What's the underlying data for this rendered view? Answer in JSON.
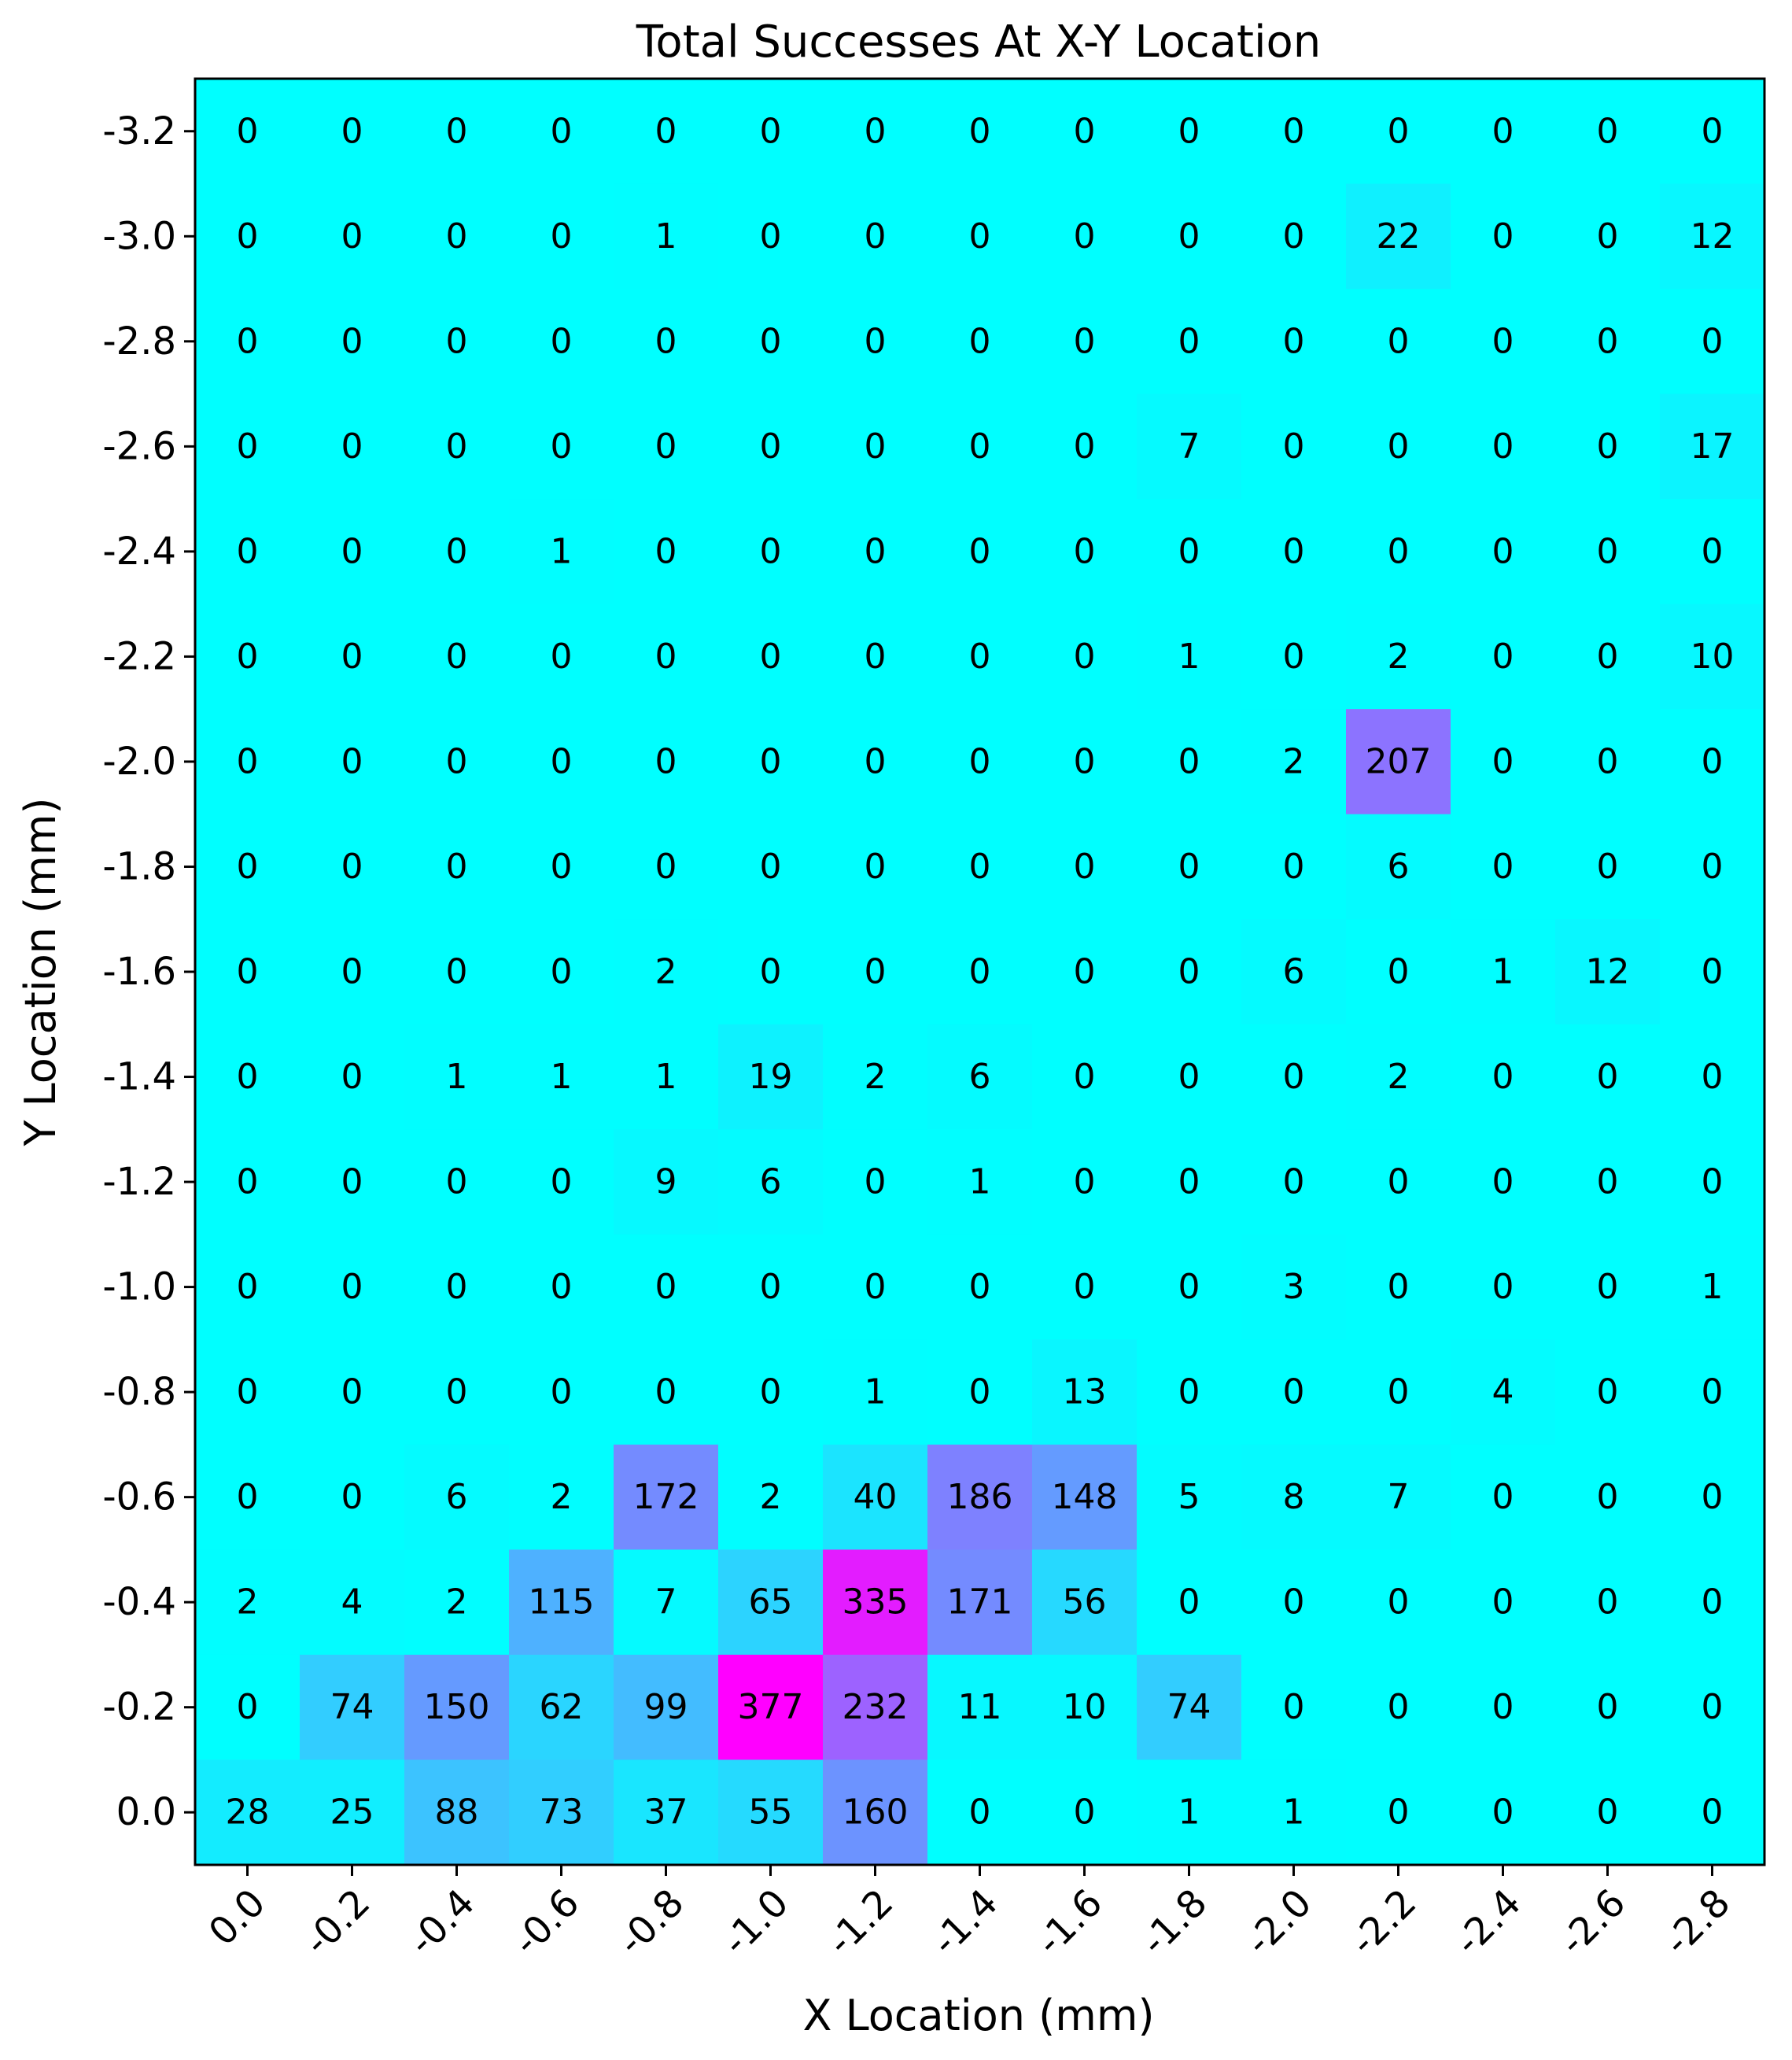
{
  "chart_data": {
    "type": "heatmap",
    "title": "Total Successes At X-Y Location",
    "xlabel": "X Location (mm)",
    "ylabel": "Y Location (mm)",
    "x_ticks": [
      "0.0",
      "-0.2",
      "-0.4",
      "-0.6",
      "-0.8",
      "-1.0",
      "-1.2",
      "-1.4",
      "-1.6",
      "-1.8",
      "-2.0",
      "-2.2",
      "-2.4",
      "-2.6",
      "-2.8"
    ],
    "y_ticks": [
      "-3.2",
      "-3.0",
      "-2.8",
      "-2.6",
      "-2.4",
      "-2.2",
      "-2.0",
      "-1.8",
      "-1.6",
      "-1.4",
      "-1.2",
      "-1.0",
      "-0.8",
      "-0.6",
      "-0.4",
      "-0.2",
      "0.0"
    ],
    "colormap": "cool",
    "vmin": 0,
    "vmax": 377,
    "values": [
      [
        0,
        0,
        0,
        0,
        0,
        0,
        0,
        0,
        0,
        0,
        0,
        0,
        0,
        0,
        0
      ],
      [
        0,
        0,
        0,
        0,
        1,
        0,
        0,
        0,
        0,
        0,
        0,
        22,
        0,
        0,
        12
      ],
      [
        0,
        0,
        0,
        0,
        0,
        0,
        0,
        0,
        0,
        0,
        0,
        0,
        0,
        0,
        0
      ],
      [
        0,
        0,
        0,
        0,
        0,
        0,
        0,
        0,
        0,
        7,
        0,
        0,
        0,
        0,
        17
      ],
      [
        0,
        0,
        0,
        1,
        0,
        0,
        0,
        0,
        0,
        0,
        0,
        0,
        0,
        0,
        0
      ],
      [
        0,
        0,
        0,
        0,
        0,
        0,
        0,
        0,
        0,
        1,
        0,
        2,
        0,
        0,
        10
      ],
      [
        0,
        0,
        0,
        0,
        0,
        0,
        0,
        0,
        0,
        0,
        2,
        207,
        0,
        0,
        0
      ],
      [
        0,
        0,
        0,
        0,
        0,
        0,
        0,
        0,
        0,
        0,
        0,
        6,
        0,
        0,
        0
      ],
      [
        0,
        0,
        0,
        0,
        2,
        0,
        0,
        0,
        0,
        0,
        6,
        0,
        1,
        12,
        0
      ],
      [
        0,
        0,
        1,
        1,
        1,
        19,
        2,
        6,
        0,
        0,
        0,
        2,
        0,
        0,
        0
      ],
      [
        0,
        0,
        0,
        0,
        9,
        6,
        0,
        1,
        0,
        0,
        0,
        0,
        0,
        0,
        0
      ],
      [
        0,
        0,
        0,
        0,
        0,
        0,
        0,
        0,
        0,
        0,
        3,
        0,
        0,
        0,
        1
      ],
      [
        0,
        0,
        0,
        0,
        0,
        0,
        1,
        0,
        13,
        0,
        0,
        0,
        4,
        0,
        0
      ],
      [
        0,
        0,
        6,
        2,
        172,
        2,
        40,
        186,
        148,
        5,
        8,
        7,
        0,
        0,
        0
      ],
      [
        2,
        4,
        2,
        115,
        7,
        65,
        335,
        171,
        56,
        0,
        0,
        0,
        0,
        0,
        0
      ],
      [
        0,
        74,
        150,
        62,
        99,
        377,
        232,
        11,
        10,
        74,
        0,
        0,
        0,
        0,
        0
      ],
      [
        28,
        25,
        88,
        73,
        37,
        55,
        160,
        0,
        0,
        1,
        1,
        0,
        0,
        0,
        0
      ]
    ]
  }
}
